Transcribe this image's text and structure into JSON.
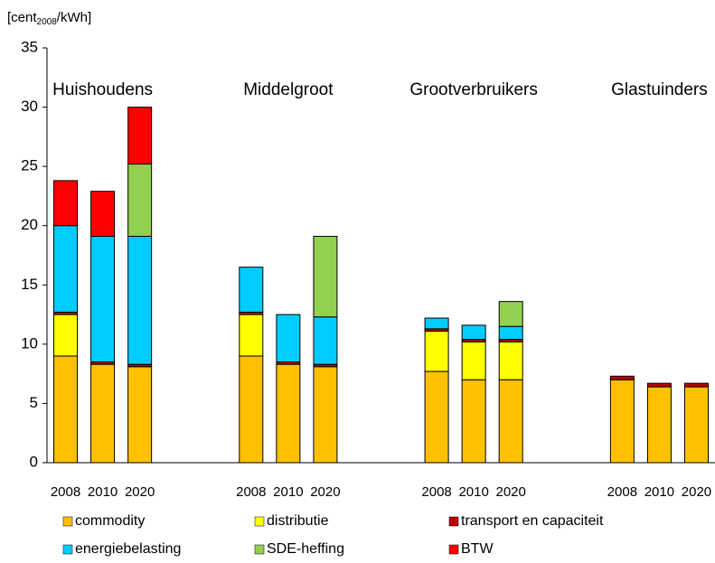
{
  "chart_data": {
    "type": "stacked_bar",
    "y_label": [
      "[cent",
      "2008",
      "/kWh]"
    ],
    "annotations": [
      "Huishoudens",
      "Middelgroot",
      "Grootverbruikers",
      "Glastuinders"
    ],
    "categories": [
      "2008",
      "2010",
      "2020",
      null,
      null,
      "2008",
      "2010",
      "2020",
      null,
      null,
      "2008",
      "2010",
      "2020",
      null,
      null,
      "2008",
      "2010",
      "2020"
    ],
    "series": [
      {
        "name": "commodity",
        "color": "#ffc000",
        "values": [
          9.0,
          8.3,
          8.1,
          null,
          null,
          9.0,
          8.3,
          8.1,
          null,
          null,
          7.7,
          7.0,
          7.0,
          null,
          null,
          7.0,
          6.4,
          6.4
        ]
      },
      {
        "name": "distributie",
        "color": "#ffff00",
        "values": [
          3.5,
          0,
          0,
          null,
          null,
          3.5,
          0,
          0,
          null,
          null,
          3.4,
          3.2,
          3.2,
          null,
          null,
          0,
          0,
          0
        ]
      },
      {
        "name": "transport en capaciteit",
        "color": "#c00000",
        "values": [
          0.2,
          0.2,
          0.2,
          null,
          null,
          0.2,
          0.2,
          0.2,
          null,
          null,
          0.2,
          0.2,
          0.2,
          null,
          null,
          0.3,
          0.3,
          0.3
        ]
      },
      {
        "name": "energiebelasting",
        "color": "#00ccff",
        "values": [
          7.3,
          10.6,
          10.8,
          null,
          null,
          3.8,
          4.0,
          4.0,
          null,
          null,
          0.9,
          1.2,
          1.1,
          null,
          null,
          0,
          0,
          0
        ]
      },
      {
        "name": "SDE-heffing",
        "color": "#92d050",
        "values": [
          0,
          0,
          6.1,
          null,
          null,
          0,
          0,
          6.8,
          null,
          null,
          0,
          0,
          2.1,
          null,
          null,
          0,
          0,
          0
        ]
      },
      {
        "name": "BTW",
        "color": "#ff0000",
        "values": [
          3.8,
          3.8,
          4.8,
          null,
          null,
          0,
          0,
          0,
          null,
          null,
          0,
          0,
          0,
          null,
          null,
          0,
          0,
          0
        ]
      }
    ],
    "ylim": [
      0,
      35
    ],
    "yticks": [
      0,
      5,
      10,
      15,
      20,
      25,
      30,
      35
    ]
  }
}
